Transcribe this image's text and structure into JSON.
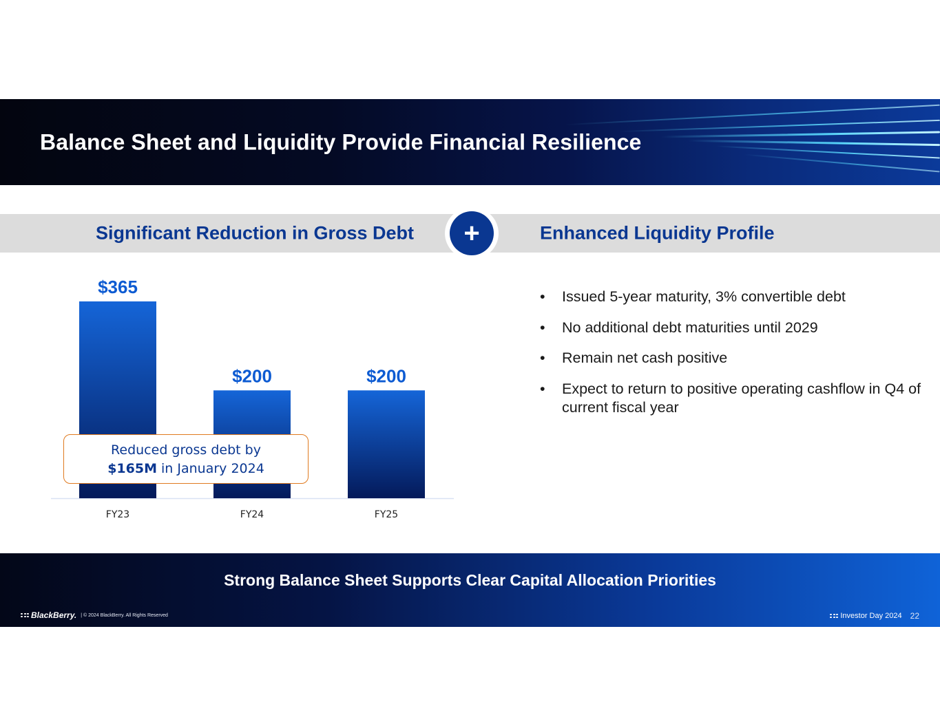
{
  "header": {
    "title": "Balance Sheet and Liquidity Provide Financial Resilience"
  },
  "sections": {
    "left_title": "Significant Reduction in Gross Debt",
    "plus_symbol": "+",
    "right_title": "Enhanced Liquidity Profile"
  },
  "chart_data": {
    "type": "bar",
    "categories": [
      "FY23",
      "FY24",
      "FY25"
    ],
    "values": [
      365,
      200,
      200
    ],
    "data_labels": [
      "$365",
      "$200",
      "$200"
    ],
    "title": "",
    "xlabel": "",
    "ylabel": "",
    "ylim": [
      0,
      365
    ],
    "grid": false,
    "legend": "none",
    "bar_color_top": "#1565d8",
    "bar_color_bottom": "#041a5a",
    "label_color": "#0d5bd2"
  },
  "callout": {
    "line1": "Reduced gross debt by",
    "amount": "$165M",
    "line2_rest": " in January 2024"
  },
  "bullets": [
    "Issued 5-year maturity, 3% convertible debt",
    "No additional debt maturities until 2029",
    "Remain net cash positive",
    "Expect to return to positive operating cashflow in Q4 of current fiscal year"
  ],
  "bullet_symbol": "•",
  "footer": {
    "tagline": "Strong Balance Sheet Supports Clear Capital Allocation Priorities",
    "brand": "BlackBerry.",
    "copyright": "|  © 2024 BlackBerry.  All Rights Reserved",
    "event": "Investor Day 2024",
    "page": "22"
  }
}
